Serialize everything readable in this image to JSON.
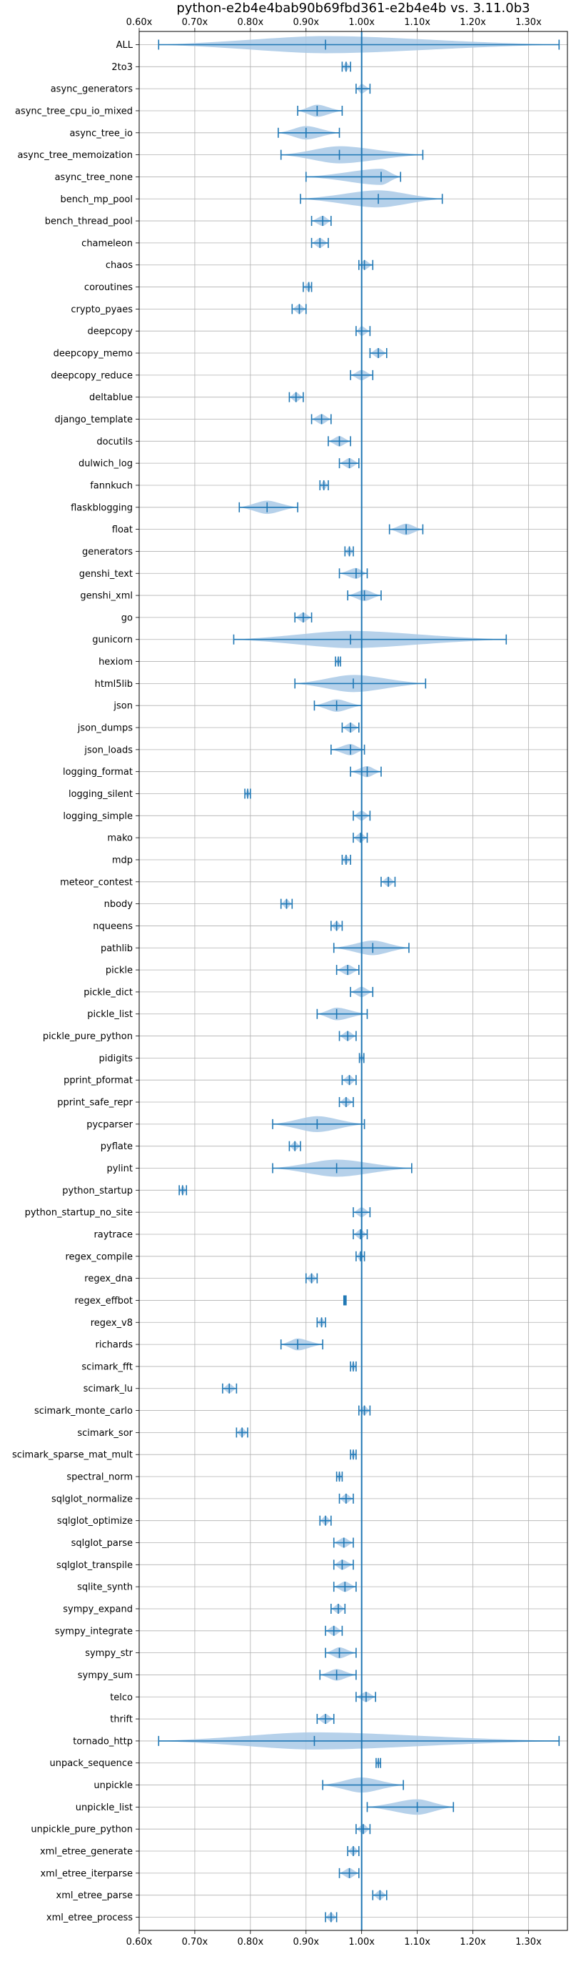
{
  "chart_data": {
    "type": "violin",
    "title": "python-e2b4e4bab90b69fbd361-e2b4e4b vs. 3.11.0b3",
    "xlabel": "",
    "ylabel": "",
    "xlim": [
      0.6,
      1.37
    ],
    "x_ticks": [
      0.6,
      0.7,
      0.8,
      0.9,
      1.0,
      1.1,
      1.2,
      1.3
    ],
    "x_tick_labels": [
      "0.60x",
      "0.70x",
      "0.80x",
      "0.90x",
      "1.00x",
      "1.10x",
      "1.20x",
      "1.30x"
    ],
    "reference_line": 1.0,
    "grid": true,
    "color": "#1f77b4",
    "fill_color": "#a9c9e6",
    "benchmarks": [
      {
        "name": "ALL",
        "min": 0.635,
        "max": 1.355,
        "median": 0.935
      },
      {
        "name": "2to3",
        "min": 0.965,
        "max": 0.98,
        "median": 0.972
      },
      {
        "name": "async_generators",
        "min": 0.99,
        "max": 1.015,
        "median": 1.0
      },
      {
        "name": "async_tree_cpu_io_mixed",
        "min": 0.885,
        "max": 0.965,
        "median": 0.92
      },
      {
        "name": "async_tree_io",
        "min": 0.85,
        "max": 0.96,
        "median": 0.9
      },
      {
        "name": "async_tree_memoization",
        "min": 0.855,
        "max": 1.11,
        "median": 0.96
      },
      {
        "name": "async_tree_none",
        "min": 0.9,
        "max": 1.07,
        "median": 1.035
      },
      {
        "name": "bench_mp_pool",
        "min": 0.89,
        "max": 1.145,
        "median": 1.03
      },
      {
        "name": "bench_thread_pool",
        "min": 0.91,
        "max": 0.945,
        "median": 0.93
      },
      {
        "name": "chameleon",
        "min": 0.91,
        "max": 0.94,
        "median": 0.925
      },
      {
        "name": "chaos",
        "min": 0.995,
        "max": 1.02,
        "median": 1.005
      },
      {
        "name": "coroutines",
        "min": 0.895,
        "max": 0.91,
        "median": 0.905
      },
      {
        "name": "crypto_pyaes",
        "min": 0.875,
        "max": 0.9,
        "median": 0.888
      },
      {
        "name": "deepcopy",
        "min": 0.99,
        "max": 1.015,
        "median": 1.0
      },
      {
        "name": "deepcopy_memo",
        "min": 1.015,
        "max": 1.045,
        "median": 1.03
      },
      {
        "name": "deepcopy_reduce",
        "min": 0.98,
        "max": 1.02,
        "median": 1.0
      },
      {
        "name": "deltablue",
        "min": 0.87,
        "max": 0.895,
        "median": 0.882
      },
      {
        "name": "django_template",
        "min": 0.91,
        "max": 0.945,
        "median": 0.928
      },
      {
        "name": "docutils",
        "min": 0.94,
        "max": 0.98,
        "median": 0.96
      },
      {
        "name": "dulwich_log",
        "min": 0.96,
        "max": 0.995,
        "median": 0.978
      },
      {
        "name": "fannkuch",
        "min": 0.925,
        "max": 0.94,
        "median": 0.932
      },
      {
        "name": "flaskblogging",
        "min": 0.78,
        "max": 0.885,
        "median": 0.83
      },
      {
        "name": "float",
        "min": 1.05,
        "max": 1.11,
        "median": 1.08
      },
      {
        "name": "generators",
        "min": 0.97,
        "max": 0.985,
        "median": 0.978
      },
      {
        "name": "genshi_text",
        "min": 0.96,
        "max": 1.01,
        "median": 0.99
      },
      {
        "name": "genshi_xml",
        "min": 0.975,
        "max": 1.035,
        "median": 1.005
      },
      {
        "name": "go",
        "min": 0.88,
        "max": 0.91,
        "median": 0.895
      },
      {
        "name": "gunicorn",
        "min": 0.77,
        "max": 1.26,
        "median": 0.98
      },
      {
        "name": "hexiom",
        "min": 0.953,
        "max": 0.962,
        "median": 0.958
      },
      {
        "name": "html5lib",
        "min": 0.88,
        "max": 1.115,
        "median": 0.985
      },
      {
        "name": "json",
        "min": 0.915,
        "max": 1.0,
        "median": 0.955
      },
      {
        "name": "json_dumps",
        "min": 0.965,
        "max": 0.995,
        "median": 0.98
      },
      {
        "name": "json_loads",
        "min": 0.945,
        "max": 1.005,
        "median": 0.98
      },
      {
        "name": "logging_format",
        "min": 0.98,
        "max": 1.035,
        "median": 1.01
      },
      {
        "name": "logging_silent",
        "min": 0.79,
        "max": 0.8,
        "median": 0.795
      },
      {
        "name": "logging_simple",
        "min": 0.985,
        "max": 1.015,
        "median": 1.0
      },
      {
        "name": "mako",
        "min": 0.985,
        "max": 1.01,
        "median": 0.998
      },
      {
        "name": "mdp",
        "min": 0.965,
        "max": 0.98,
        "median": 0.972
      },
      {
        "name": "meteor_contest",
        "min": 1.035,
        "max": 1.06,
        "median": 1.048
      },
      {
        "name": "nbody",
        "min": 0.855,
        "max": 0.875,
        "median": 0.865
      },
      {
        "name": "nqueens",
        "min": 0.945,
        "max": 0.965,
        "median": 0.955
      },
      {
        "name": "pathlib",
        "min": 0.95,
        "max": 1.085,
        "median": 1.02
      },
      {
        "name": "pickle",
        "min": 0.955,
        "max": 0.995,
        "median": 0.975
      },
      {
        "name": "pickle_dict",
        "min": 0.98,
        "max": 1.02,
        "median": 1.0
      },
      {
        "name": "pickle_list",
        "min": 0.92,
        "max": 1.01,
        "median": 0.955
      },
      {
        "name": "pickle_pure_python",
        "min": 0.96,
        "max": 0.99,
        "median": 0.975
      },
      {
        "name": "pidigits",
        "min": 0.996,
        "max": 1.004,
        "median": 1.0
      },
      {
        "name": "pprint_pformat",
        "min": 0.965,
        "max": 0.99,
        "median": 0.978
      },
      {
        "name": "pprint_safe_repr",
        "min": 0.96,
        "max": 0.985,
        "median": 0.972
      },
      {
        "name": "pycparser",
        "min": 0.84,
        "max": 1.005,
        "median": 0.92
      },
      {
        "name": "pyflate",
        "min": 0.87,
        "max": 0.89,
        "median": 0.88
      },
      {
        "name": "pylint",
        "min": 0.84,
        "max": 1.09,
        "median": 0.955
      },
      {
        "name": "python_startup",
        "min": 0.672,
        "max": 0.685,
        "median": 0.678
      },
      {
        "name": "python_startup_no_site",
        "min": 0.985,
        "max": 1.015,
        "median": 1.0
      },
      {
        "name": "raytrace",
        "min": 0.985,
        "max": 1.01,
        "median": 0.998
      },
      {
        "name": "regex_compile",
        "min": 0.99,
        "max": 1.005,
        "median": 0.998
      },
      {
        "name": "regex_dna",
        "min": 0.9,
        "max": 0.92,
        "median": 0.91
      },
      {
        "name": "regex_effbot",
        "min": 0.968,
        "max": 0.972,
        "median": 0.97
      },
      {
        "name": "regex_v8",
        "min": 0.92,
        "max": 0.935,
        "median": 0.928
      },
      {
        "name": "richards",
        "min": 0.855,
        "max": 0.93,
        "median": 0.885
      },
      {
        "name": "scimark_fft",
        "min": 0.98,
        "max": 0.99,
        "median": 0.985
      },
      {
        "name": "scimark_lu",
        "min": 0.75,
        "max": 0.775,
        "median": 0.762
      },
      {
        "name": "scimark_monte_carlo",
        "min": 0.995,
        "max": 1.015,
        "median": 1.005
      },
      {
        "name": "scimark_sor",
        "min": 0.775,
        "max": 0.795,
        "median": 0.785
      },
      {
        "name": "scimark_sparse_mat_mult",
        "min": 0.98,
        "max": 0.99,
        "median": 0.985
      },
      {
        "name": "spectral_norm",
        "min": 0.955,
        "max": 0.965,
        "median": 0.96
      },
      {
        "name": "sqlglot_normalize",
        "min": 0.96,
        "max": 0.985,
        "median": 0.972
      },
      {
        "name": "sqlglot_optimize",
        "min": 0.925,
        "max": 0.945,
        "median": 0.935
      },
      {
        "name": "sqlglot_parse",
        "min": 0.95,
        "max": 0.985,
        "median": 0.968
      },
      {
        "name": "sqlglot_transpile",
        "min": 0.95,
        "max": 0.985,
        "median": 0.965
      },
      {
        "name": "sqlite_synth",
        "min": 0.95,
        "max": 0.99,
        "median": 0.97
      },
      {
        "name": "sympy_expand",
        "min": 0.945,
        "max": 0.97,
        "median": 0.958
      },
      {
        "name": "sympy_integrate",
        "min": 0.935,
        "max": 0.965,
        "median": 0.95
      },
      {
        "name": "sympy_str",
        "min": 0.935,
        "max": 0.99,
        "median": 0.96
      },
      {
        "name": "sympy_sum",
        "min": 0.925,
        "max": 0.99,
        "median": 0.955
      },
      {
        "name": "telco",
        "min": 0.99,
        "max": 1.025,
        "median": 1.008
      },
      {
        "name": "thrift",
        "min": 0.92,
        "max": 0.95,
        "median": 0.935
      },
      {
        "name": "tornado_http",
        "min": 0.635,
        "max": 1.355,
        "median": 0.915
      },
      {
        "name": "unpack_sequence",
        "min": 1.026,
        "max": 1.034,
        "median": 1.03
      },
      {
        "name": "unpickle",
        "min": 0.93,
        "max": 1.075,
        "median": 1.0
      },
      {
        "name": "unpickle_list",
        "min": 1.01,
        "max": 1.165,
        "median": 1.1
      },
      {
        "name": "unpickle_pure_python",
        "min": 0.99,
        "max": 1.015,
        "median": 1.003
      },
      {
        "name": "xml_etree_generate",
        "min": 0.975,
        "max": 0.995,
        "median": 0.985
      },
      {
        "name": "xml_etree_iterparse",
        "min": 0.96,
        "max": 0.995,
        "median": 0.978
      },
      {
        "name": "xml_etree_parse",
        "min": 1.02,
        "max": 1.045,
        "median": 1.033
      },
      {
        "name": "xml_etree_process",
        "min": 0.935,
        "max": 0.955,
        "median": 0.945
      }
    ]
  }
}
